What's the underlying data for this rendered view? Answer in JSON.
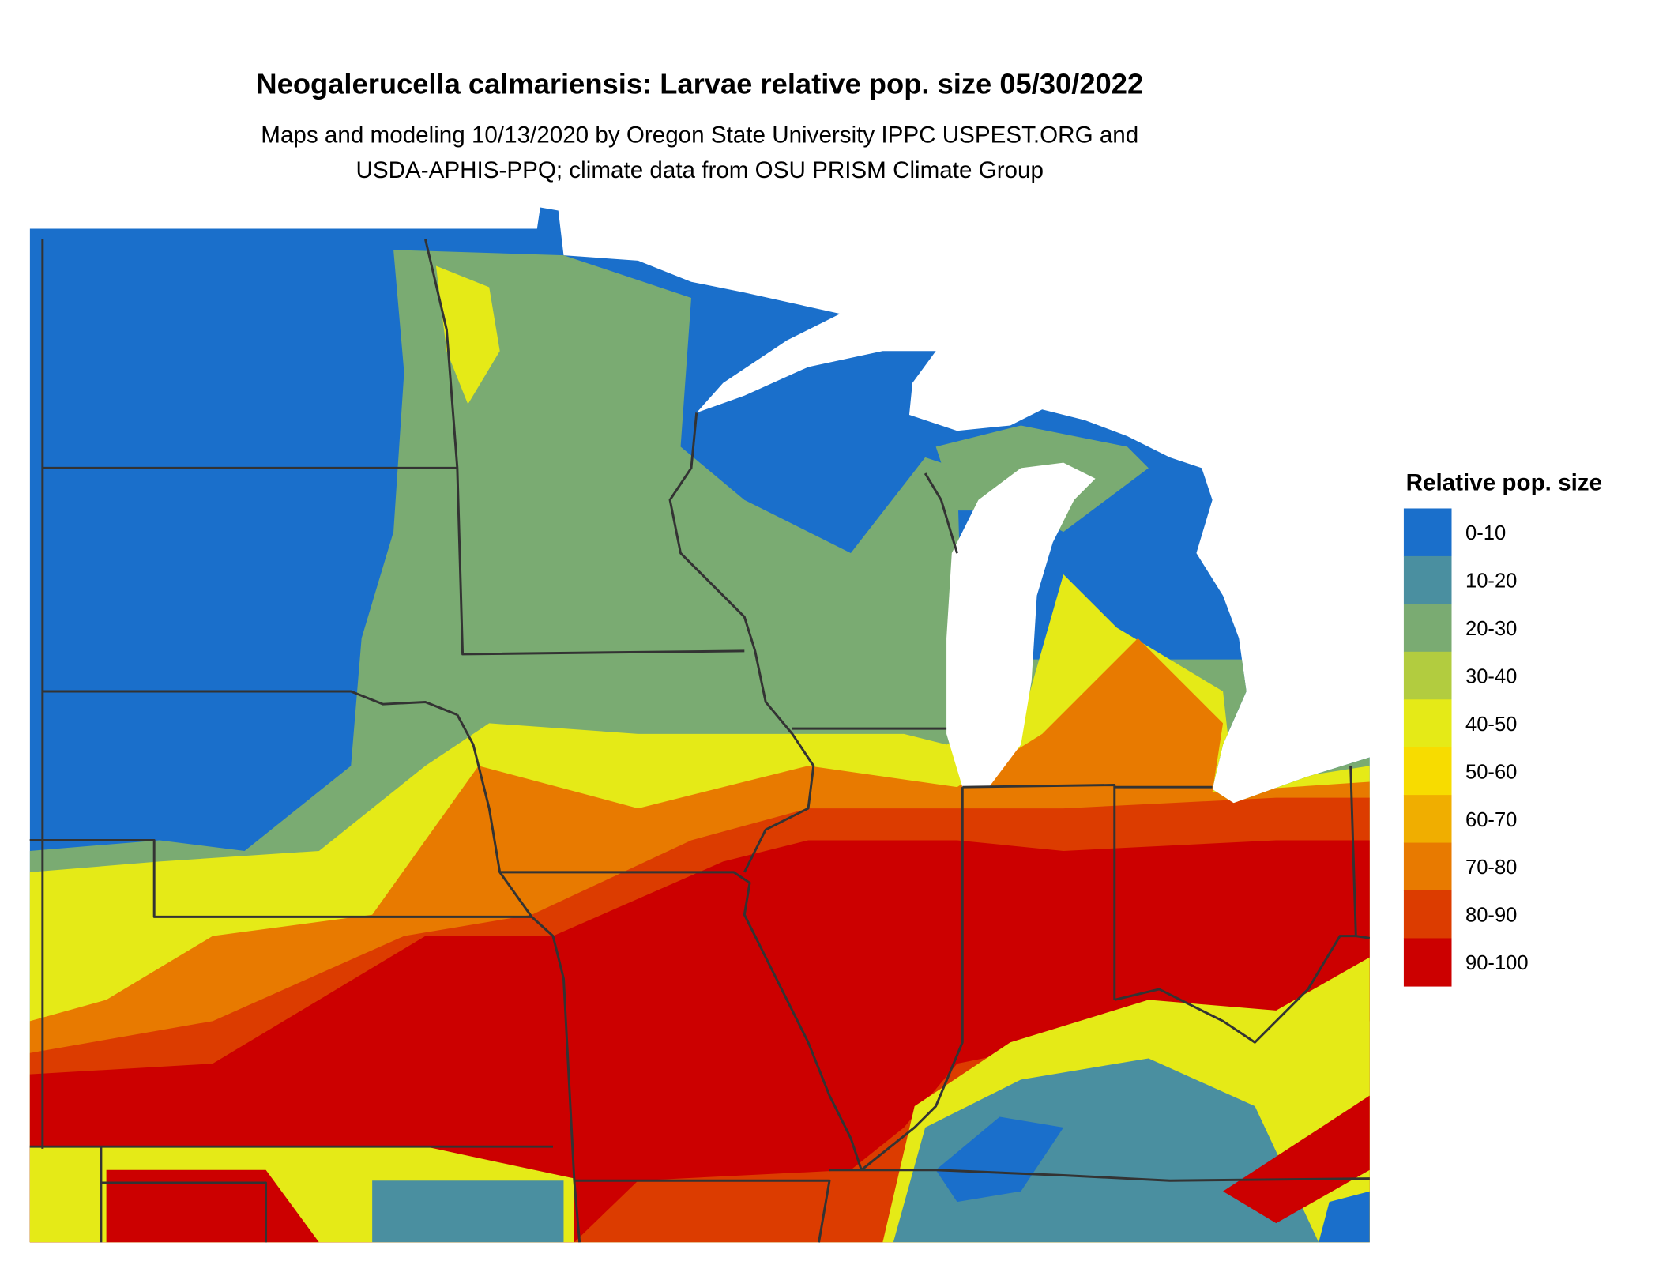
{
  "title": "Neogalerucella calmariensis: Larvae relative pop. size 05/30/2022",
  "subtitle": [
    "Maps and modeling 10/13/2020 by Oregon State University IPPC USPEST.ORG and",
    "USDA-APHIS-PPQ; climate data from OSU PRISM Climate Group"
  ],
  "legend": {
    "title": "Relative pop. size",
    "items": [
      {
        "label": "0-10",
        "color": "#1a6fcb"
      },
      {
        "label": "10-20",
        "color": "#4a8fa0"
      },
      {
        "label": "20-30",
        "color": "#7aab72"
      },
      {
        "label": "30-40",
        "color": "#b2cc3f"
      },
      {
        "label": "40-50",
        "color": "#e5ea17"
      },
      {
        "label": "50-60",
        "color": "#f7dc00"
      },
      {
        "label": "60-70",
        "color": "#f0ae00"
      },
      {
        "label": "70-80",
        "color": "#e87a00"
      },
      {
        "label": "80-90",
        "color": "#dc3c00"
      },
      {
        "label": "90-100",
        "color": "#cc0000"
      }
    ]
  }
}
